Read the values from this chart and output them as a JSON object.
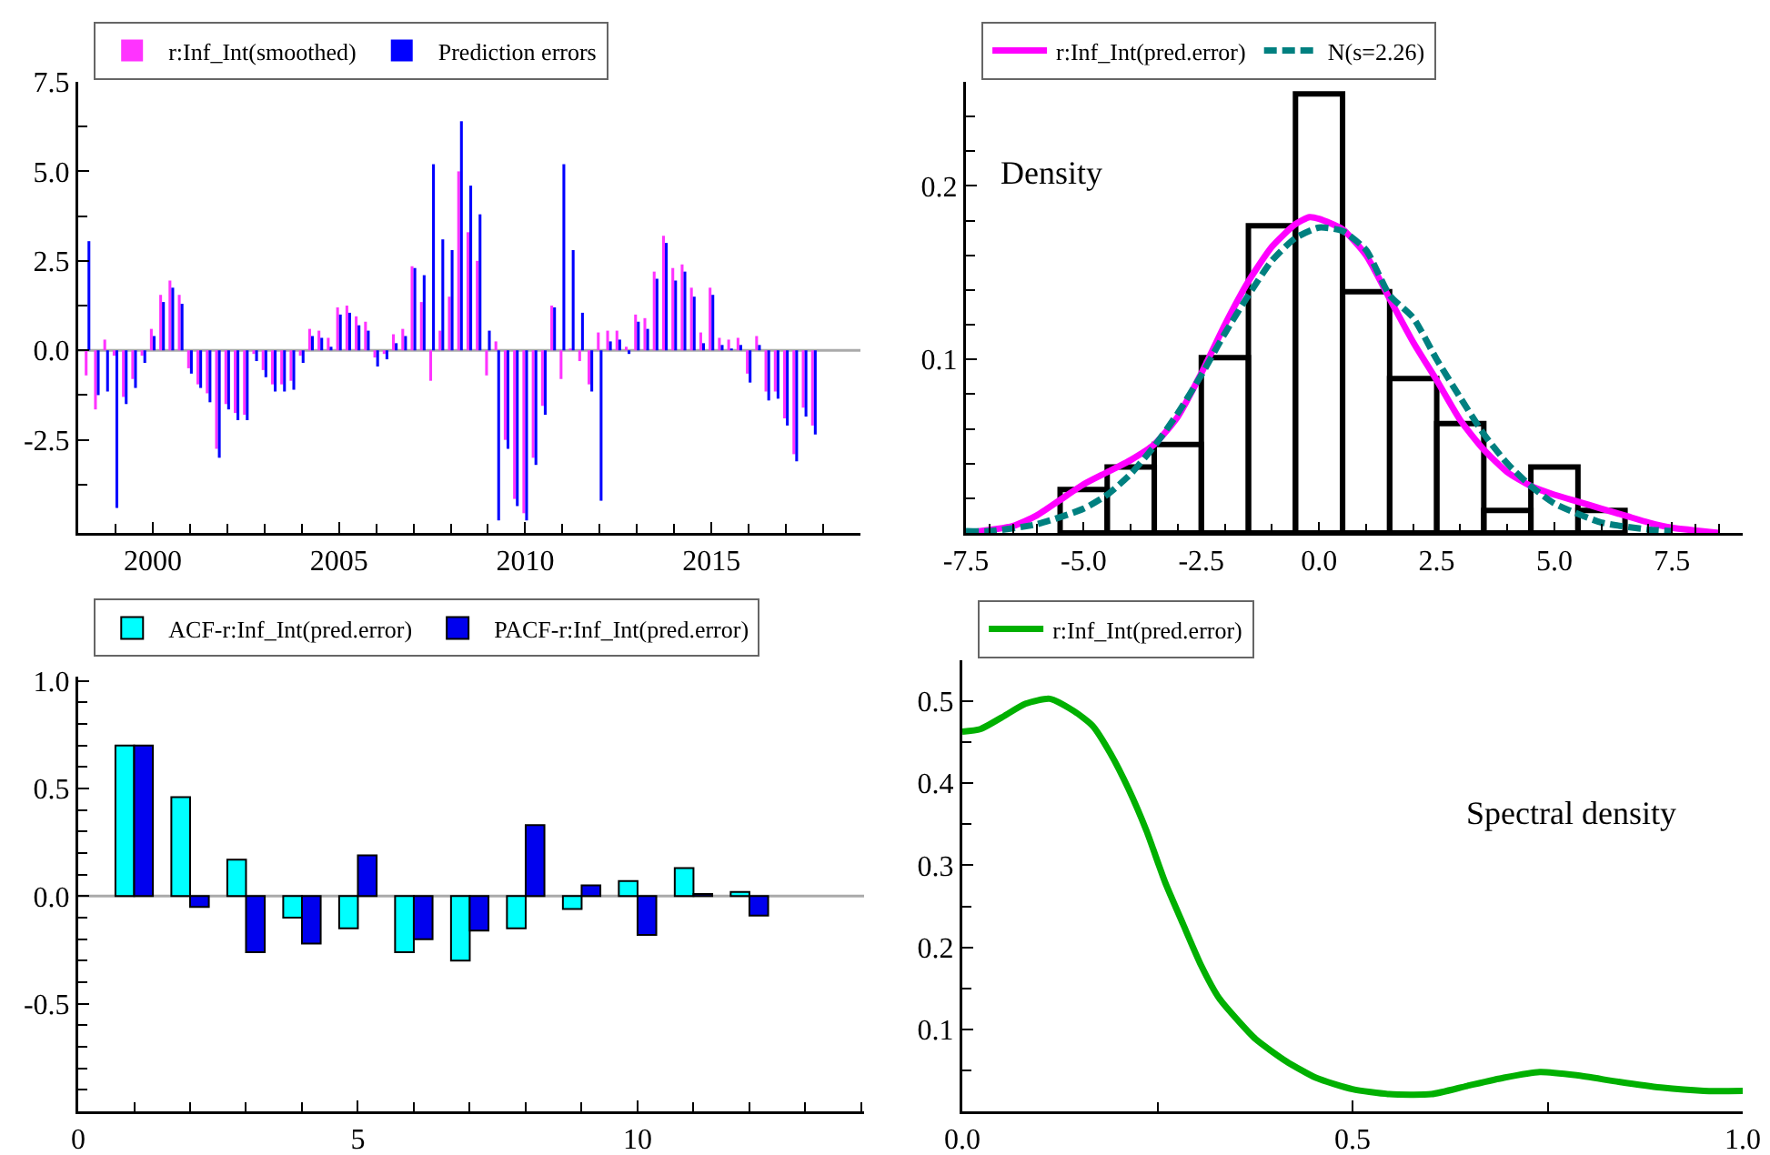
{
  "chart_data": [
    {
      "type": "bar",
      "legend": "top left",
      "x": [
        1998.25,
        1998.5,
        1998.75,
        1999,
        1999.25,
        1999.5,
        1999.75,
        2000,
        2000.25,
        2000.5,
        2000.75,
        2001,
        2001.25,
        2001.5,
        2001.75,
        2002,
        2002.25,
        2002.5,
        2002.75,
        2003,
        2003.25,
        2003.5,
        2003.75,
        2004,
        2004.25,
        2004.5,
        2004.75,
        2005,
        2005.25,
        2005.5,
        2005.75,
        2006,
        2006.25,
        2006.5,
        2006.75,
        2007,
        2007.25,
        2007.5,
        2007.75,
        2008,
        2008.25,
        2008.5,
        2008.75,
        2009,
        2009.25,
        2009.5,
        2009.75,
        2010,
        2010.25,
        2010.5,
        2010.75,
        2011,
        2011.25,
        2011.5,
        2011.75,
        2012,
        2012.25,
        2012.5,
        2012.75,
        2013,
        2013.25,
        2013.5,
        2013.75,
        2014,
        2014.25,
        2014.5,
        2014.75,
        2015,
        2015.25,
        2015.5,
        2015.75,
        2016,
        2016.25,
        2016.5,
        2016.75,
        2017,
        2017.25,
        2017.5,
        2017.75
      ],
      "series": [
        {
          "name": "r:Inf_Int(smoothed)",
          "color": "#ff33ff",
          "values": [
            -0.7,
            -1.65,
            0.3,
            -0.15,
            -1.3,
            -0.8,
            -0.15,
            0.6,
            1.55,
            1.95,
            1.55,
            -0.5,
            -0.95,
            -1.2,
            -2.75,
            -1.5,
            -1.75,
            -1.8,
            -0.1,
            -0.55,
            -0.95,
            -0.95,
            -0.85,
            -0.15,
            0.6,
            0.55,
            0.35,
            1.2,
            1.25,
            0.95,
            0.8,
            -0.2,
            -0.1,
            0.45,
            0.6,
            2.35,
            1.35,
            -0.85,
            0.55,
            1.5,
            5.0,
            3.3,
            2.5,
            -0.7,
            0.25,
            -2.5,
            -4.15,
            -4.55,
            -3.0,
            -1.55,
            1.25,
            -0.8,
            0.05,
            -0.3,
            -0.95,
            0.5,
            0.55,
            0.55,
            0.1,
            1.0,
            0.9,
            2.2,
            3.2,
            2.3,
            2.4,
            1.75,
            0.5,
            1.75,
            0.35,
            0.3,
            0.35,
            -0.65,
            0.4,
            -1.15,
            -1.15,
            -1.9,
            -2.9,
            -1.6,
            -2.1
          ]
        },
        {
          "name": "Prediction errors",
          "color": "#0000ff",
          "values": [
            3.05,
            -1.25,
            -1.15,
            -4.4,
            -1.5,
            -1.05,
            -0.35,
            0.4,
            1.35,
            1.75,
            1.3,
            -0.65,
            -1.05,
            -1.45,
            -3.0,
            -1.65,
            -1.95,
            -1.95,
            -0.3,
            -0.75,
            -1.15,
            -1.15,
            -1.1,
            -0.35,
            0.4,
            0.35,
            0.1,
            1.0,
            1.05,
            0.7,
            0.55,
            -0.45,
            -0.25,
            0.2,
            0.4,
            2.3,
            2.1,
            5.2,
            3.1,
            2.8,
            6.4,
            4.6,
            3.8,
            0.55,
            -4.75,
            -2.75,
            -4.35,
            -4.75,
            -3.2,
            -1.8,
            1.2,
            5.2,
            2.8,
            1.05,
            -1.15,
            -4.2,
            0.25,
            0.3,
            -0.1,
            0.8,
            0.6,
            2.0,
            3.0,
            1.95,
            2.2,
            1.5,
            0.2,
            1.55,
            0.15,
            0.05,
            0.15,
            -0.9,
            0.15,
            -1.4,
            -1.35,
            -2.1,
            -3.1,
            -1.85,
            -2.35
          ]
        }
      ],
      "ref_lines": [
        {
          "axis": "y",
          "value": 0,
          "color": "#aaaaaa"
        }
      ],
      "xlim": [
        1998,
        2019
      ],
      "xticks": [
        {
          "value": 1999,
          "label": null
        },
        2000,
        {
          "value": 2001,
          "label": null
        },
        {
          "value": 2002,
          "label": null
        },
        {
          "value": 2003,
          "label": null
        },
        {
          "value": 2004,
          "label": null
        },
        2005,
        {
          "value": 2006,
          "label": null
        },
        {
          "value": 2007,
          "label": null
        },
        {
          "value": 2008,
          "label": null
        },
        {
          "value": 2009,
          "label": null
        },
        2010,
        {
          "value": 2011,
          "label": null
        },
        {
          "value": 2012,
          "label": null
        },
        {
          "value": 2013,
          "label": null
        },
        {
          "value": 2014,
          "label": null
        },
        2015,
        {
          "value": 2016,
          "label": null
        },
        {
          "value": 2017,
          "label": null
        },
        {
          "value": 2018,
          "label": null
        }
      ],
      "ylim": [
        -5.1,
        7.5
      ],
      "yticks": [
        {
          "value": -3.75,
          "label": null
        },
        -2.5,
        {
          "value": -1.25,
          "label": null
        },
        {
          "value": 0,
          "label": "0.0"
        },
        {
          "value": 1.25,
          "label": null
        },
        2.5,
        {
          "value": 3.75,
          "label": null
        },
        {
          "value": 5,
          "label": "5.0"
        },
        {
          "value": 6.25,
          "label": null
        },
        7.5
      ]
    },
    {
      "type": "histogram",
      "legend": "top left",
      "color": "#000000",
      "bins": [
        -5.5,
        -4.5,
        -3.5,
        -2.5,
        -1.5,
        -0.5,
        0.5,
        1.5,
        2.5,
        3.5,
        4.5,
        5.5,
        6.5
      ],
      "values": [
        0.025,
        0.038,
        0.051,
        0.101,
        0.177,
        0.253,
        0.139,
        0.089,
        0.063,
        0.013,
        0.038,
        0.013
      ],
      "series": [
        {
          "type": "line",
          "name": "r:Inf_Int(pred.error)",
          "color": "#ff00ff",
          "x": [
            -7.5,
            -6.5,
            -6,
            -5.5,
            -5,
            -4.5,
            -4,
            -3.5,
            -3,
            -2.5,
            -2,
            -1.5,
            -1,
            -0.5,
            -0.2,
            0,
            0.5,
            1,
            1.5,
            2,
            2.5,
            3,
            3.5,
            4,
            4.5,
            5,
            5.5,
            6,
            6.5,
            7,
            7.5,
            8.5
          ],
          "values": [
            0,
            0.004,
            0.01,
            0.019,
            0.028,
            0.035,
            0.042,
            0.051,
            0.067,
            0.092,
            0.12,
            0.145,
            0.165,
            0.178,
            0.182,
            0.181,
            0.175,
            0.16,
            0.135,
            0.11,
            0.088,
            0.065,
            0.048,
            0.035,
            0.027,
            0.022,
            0.018,
            0.014,
            0.01,
            0.006,
            0.003,
            0
          ]
        },
        {
          "type": "line",
          "name": "N(s=2.26)",
          "color": "#008080",
          "line_style": "dashed",
          "x": [
            -7.5,
            -7,
            -6,
            -5,
            -4.5,
            -4,
            -3.5,
            -3,
            -2.5,
            -2,
            -1.5,
            -1,
            -0.5,
            0,
            0.5,
            1,
            1.5,
            2,
            2.5,
            3,
            3.5,
            4,
            4.5,
            5,
            6,
            7,
            7.5
          ],
          "values": [
            0.001,
            0.001,
            0.005,
            0.014,
            0.022,
            0.034,
            0.05,
            0.069,
            0.091,
            0.115,
            0.137,
            0.157,
            0.17,
            0.176,
            0.174,
            0.163,
            0.137,
            0.124,
            0.1,
            0.078,
            0.057,
            0.04,
            0.027,
            0.017,
            0.006,
            0.002,
            0.001
          ]
        }
      ],
      "annotations": [
        "Density"
      ],
      "xlim": [
        -7.5,
        9
      ],
      "xticks": [
        -7.5,
        {
          "value": -7,
          "label": null
        },
        {
          "value": -6.5,
          "label": null
        },
        {
          "value": -6,
          "label": null
        },
        {
          "value": -5.5,
          "label": null
        },
        {
          "value": -5,
          "label": "-5.0"
        },
        {
          "value": -4.5,
          "label": null
        },
        {
          "value": -4,
          "label": null
        },
        {
          "value": -3.5,
          "label": null
        },
        {
          "value": -3,
          "label": null
        },
        -2.5,
        {
          "value": -2,
          "label": null
        },
        {
          "value": -1.5,
          "label": null
        },
        {
          "value": -1,
          "label": null
        },
        {
          "value": -0.5,
          "label": null
        },
        {
          "value": 0,
          "label": "0.0"
        },
        {
          "value": 0.5,
          "label": null
        },
        {
          "value": 1,
          "label": null
        },
        {
          "value": 1.5,
          "label": null
        },
        {
          "value": 2,
          "label": null
        },
        2.5,
        {
          "value": 3,
          "label": null
        },
        {
          "value": 3.5,
          "label": null
        },
        {
          "value": 4,
          "label": null
        },
        {
          "value": 4.5,
          "label": null
        },
        {
          "value": 5,
          "label": "5.0"
        },
        {
          "value": 5.5,
          "label": null
        },
        {
          "value": 6,
          "label": null
        },
        {
          "value": 6.5,
          "label": null
        },
        {
          "value": 7,
          "label": null
        },
        7.5,
        {
          "value": 8,
          "label": null
        },
        {
          "value": 8.5,
          "label": null
        }
      ],
      "ylim": [
        0,
        0.26
      ],
      "yticks": [
        {
          "value": 0.02,
          "label": null
        },
        {
          "value": 0.04,
          "label": null
        },
        {
          "value": 0.06,
          "label": null
        },
        {
          "value": 0.08,
          "label": null
        },
        0.1,
        {
          "value": 0.12,
          "label": null
        },
        {
          "value": 0.14,
          "label": null
        },
        {
          "value": 0.16,
          "label": null
        },
        {
          "value": 0.18,
          "label": null
        },
        0.2,
        {
          "value": 0.22,
          "label": null
        },
        {
          "value": 0.24,
          "label": null
        }
      ]
    },
    {
      "type": "bar",
      "legend": "top left",
      "x": [
        1,
        2,
        3,
        4,
        5,
        6,
        7,
        8,
        9,
        10,
        11,
        12
      ],
      "series": [
        {
          "name": "ACF-r:Inf_Int(pred.error)",
          "color": "#00ffff",
          "values": [
            0.7,
            0.46,
            0.17,
            -0.1,
            -0.15,
            -0.26,
            -0.3,
            -0.15,
            -0.06,
            0.07,
            0.13,
            0.02
          ]
        },
        {
          "name": "PACF-r:Inf_Int(pred.error)",
          "color": "#0000ee",
          "values": [
            0.7,
            -0.05,
            -0.26,
            -0.22,
            0.19,
            -0.2,
            -0.16,
            0.33,
            0.05,
            -0.18,
            0.01,
            -0.09
          ]
        }
      ],
      "ref_lines": [
        {
          "axis": "y",
          "value": 0,
          "color": "#aaaaaa"
        }
      ],
      "xlim": [
        0,
        14.05
      ],
      "xticks": [
        0,
        {
          "value": 1,
          "label": null
        },
        {
          "value": 2,
          "label": null
        },
        {
          "value": 3,
          "label": null
        },
        {
          "value": 4,
          "label": null
        },
        5,
        {
          "value": 6,
          "label": null
        },
        {
          "value": 7,
          "label": null
        },
        {
          "value": 8,
          "label": null
        },
        {
          "value": 9,
          "label": null
        },
        10,
        {
          "value": 11,
          "label": null
        },
        {
          "value": 12,
          "label": null
        },
        {
          "value": 13,
          "label": null
        },
        {
          "value": 14,
          "label": null
        }
      ],
      "ylim": [
        -1,
        1.02
      ],
      "yticks": [
        {
          "value": -0.9,
          "label": null
        },
        {
          "value": -0.8,
          "label": null
        },
        {
          "value": -0.7,
          "label": null
        },
        {
          "value": -0.6,
          "label": null
        },
        -0.5,
        {
          "value": -0.4,
          "label": null
        },
        {
          "value": -0.3,
          "label": null
        },
        {
          "value": -0.2,
          "label": null
        },
        {
          "value": -0.1,
          "label": null
        },
        {
          "value": 0,
          "label": "0.0"
        },
        {
          "value": 0.1,
          "label": null
        },
        {
          "value": 0.2,
          "label": null
        },
        {
          "value": 0.3,
          "label": null
        },
        {
          "value": 0.4,
          "label": null
        },
        0.5,
        {
          "value": 0.6,
          "label": null
        },
        {
          "value": 0.7,
          "label": null
        },
        {
          "value": 0.8,
          "label": null
        },
        {
          "value": 0.9,
          "label": null
        },
        {
          "value": 1,
          "label": "1.0"
        }
      ]
    },
    {
      "type": "line",
      "legend": "top left",
      "x": [
        0,
        0.023,
        0.05,
        0.081,
        0.112,
        0.143,
        0.167,
        0.19,
        0.213,
        0.236,
        0.26,
        0.283,
        0.306,
        0.329,
        0.353,
        0.376,
        0.415,
        0.453,
        0.5,
        0.547,
        0.601,
        0.647,
        0.694,
        0.74,
        0.787,
        0.841,
        0.895,
        0.95,
        1
      ],
      "series": [
        {
          "name": "r:Inf_Int(pred.error)",
          "color": "#00b000",
          "values": [
            0.463,
            0.466,
            0.48,
            0.497,
            0.503,
            0.488,
            0.47,
            0.436,
            0.393,
            0.342,
            0.279,
            0.228,
            0.178,
            0.138,
            0.111,
            0.088,
            0.061,
            0.041,
            0.027,
            0.021,
            0.021,
            0.031,
            0.041,
            0.048,
            0.044,
            0.036,
            0.029,
            0.025,
            0.025
          ]
        }
      ],
      "annotations": [
        "Spectral density"
      ],
      "xlim": [
        0,
        1
      ],
      "xticks": [
        {
          "value": 0,
          "label": "0.0"
        },
        {
          "value": 0.25,
          "label": null
        },
        0.5,
        {
          "value": 0.75,
          "label": null
        },
        {
          "value": 1,
          "label": "1.0"
        }
      ],
      "ylim": [
        0,
        0.55
      ],
      "yticks": [
        {
          "value": 0.05,
          "label": null
        },
        0.1,
        {
          "value": 0.15,
          "label": null
        },
        0.2,
        {
          "value": 0.25,
          "label": null
        },
        0.3,
        {
          "value": 0.35,
          "label": null
        },
        0.4,
        {
          "value": 0.45,
          "label": null
        },
        0.5
      ]
    }
  ]
}
